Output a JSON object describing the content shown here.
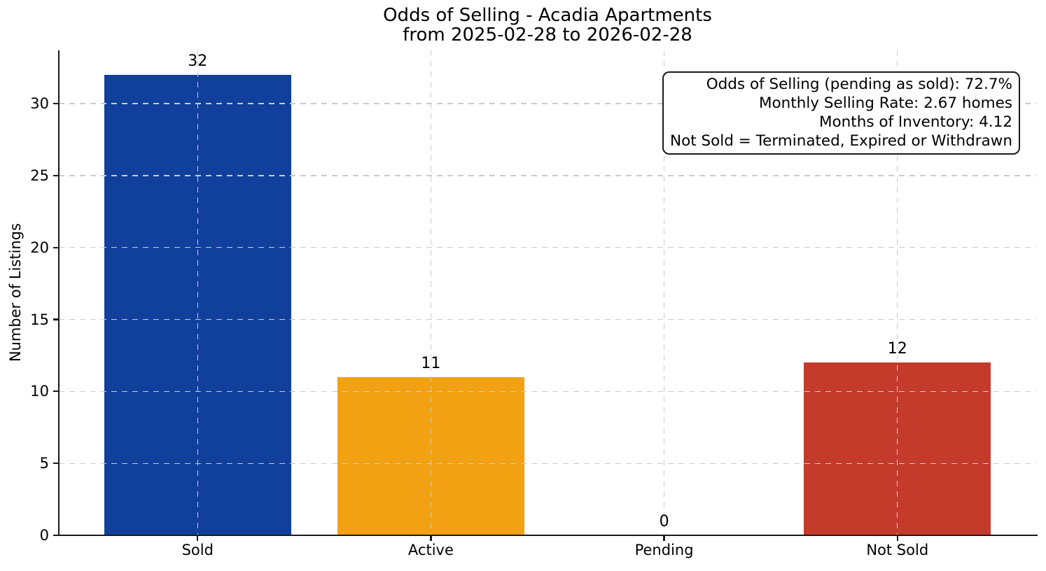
{
  "chart_data": {
    "type": "bar",
    "title": "Odds of Selling - Acadia Apartments",
    "subtitle": "from 2025-02-28 to 2026-02-28",
    "categories": [
      "Sold",
      "Active",
      "Pending",
      "Not Sold"
    ],
    "values": [
      32,
      11,
      0,
      12
    ],
    "bar_colors": [
      "#10409C",
      "#F2A112",
      "#888888",
      "#C43B2C"
    ],
    "value_labels": [
      "32",
      "11",
      "0",
      "12"
    ],
    "xlabel": "",
    "ylabel": "Number of Listings",
    "yticks": [
      0,
      5,
      10,
      15,
      20,
      25,
      30
    ],
    "ylim": [
      0,
      33.7
    ],
    "grid": "dashed both axes, drawn above bars",
    "legend": "none",
    "annotation": {
      "position": "top-right",
      "lines": [
        "Odds of Selling (pending as sold): 72.7%",
        "Monthly Selling Rate: 2.67 homes",
        "Months of Inventory: 4.12",
        "Not Sold = Terminated, Expired or Withdrawn"
      ]
    },
    "colors": {
      "background": "#ffffff",
      "grid": "#cbcbcb",
      "axis": "#1a1a1a",
      "text": "#000000"
    }
  }
}
